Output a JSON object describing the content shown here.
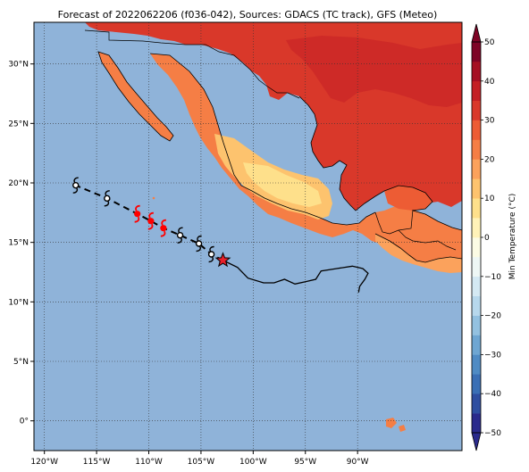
{
  "title": "Forecast of 2022062206 (f036-042), Sources: GDACS (TC track), GFS (Meteo)",
  "map": {
    "lon_range": [
      -121.0,
      -80.0
    ],
    "lat_range": [
      -2.5,
      33.5
    ],
    "lon_ticks": [
      {
        "lon": -120,
        "label": "120°W"
      },
      {
        "lon": -115,
        "label": "115°W"
      },
      {
        "lon": -110,
        "label": "110°W"
      },
      {
        "lon": -105,
        "label": "105°W"
      },
      {
        "lon": -100,
        "label": "100°W"
      },
      {
        "lon": -95,
        "label": "95°W"
      },
      {
        "lon": -90,
        "label": "90°W"
      }
    ],
    "lat_ticks": [
      {
        "lat": 0,
        "label": "0°"
      },
      {
        "lat": 5,
        "label": "5°N"
      },
      {
        "lat": 10,
        "label": "10°N"
      },
      {
        "lat": 15,
        "label": "15°N"
      },
      {
        "lat": 20,
        "label": "20°N"
      },
      {
        "lat": 25,
        "label": "25°N"
      },
      {
        "lat": 30,
        "label": "30°N"
      }
    ],
    "ocean_color": "#8fb3d9",
    "grid": "dotted"
  },
  "colorbar": {
    "label": "Min Temperature (°C)",
    "levels": [
      -50,
      -45,
      -40,
      -35,
      -30,
      -25,
      -20,
      -15,
      -10,
      -5,
      0,
      5,
      10,
      15,
      20,
      25,
      30,
      35,
      40,
      45,
      50
    ],
    "colors": [
      "#2a2a8c",
      "#2e4ea0",
      "#3a6fb5",
      "#4f8bc4",
      "#6ea6d2",
      "#93c1e0",
      "#b7d8ec",
      "#d4e9f3",
      "#eef7f5",
      "#fbfbe4",
      "#fff2b8",
      "#fee08b",
      "#fdc36e",
      "#fba25c",
      "#f57e45",
      "#ed5c34",
      "#d9382a",
      "#c41f24",
      "#a50f23",
      "#7e0426"
    ],
    "tick_values": [
      -50,
      -40,
      -30,
      -20,
      -10,
      0,
      10,
      20,
      30,
      40,
      50
    ],
    "tick_labels": [
      "−50",
      "−40",
      "−30",
      "−20",
      "−10",
      "0",
      "10",
      "20",
      "30",
      "40",
      "50"
    ],
    "extend": "both"
  },
  "track": {
    "forecast_start": {
      "lon": -102.9,
      "lat": 13.5,
      "marker": "star"
    },
    "past_track": [
      [
        -102.9,
        13.5
      ],
      [
        -101.5,
        12.9
      ],
      [
        -100.5,
        12.0
      ],
      [
        -99.0,
        11.6
      ],
      [
        -98.0,
        11.6
      ],
      [
        -97.0,
        11.9
      ],
      [
        -96.0,
        11.5
      ],
      [
        -95.0,
        11.7
      ],
      [
        -94.0,
        11.9
      ],
      [
        -93.5,
        12.6
      ],
      [
        -92.0,
        12.8
      ],
      [
        -90.5,
        13.0
      ],
      [
        -89.5,
        12.8
      ],
      [
        -89.0,
        12.4
      ],
      [
        -89.3,
        11.9
      ],
      [
        -89.8,
        11.3
      ],
      [
        -89.9,
        10.8
      ]
    ],
    "forecast_track": [
      [
        -102.9,
        13.5
      ],
      [
        -104.0,
        14.0
      ],
      [
        -105.2,
        14.9
      ],
      [
        -107.0,
        15.6
      ],
      [
        -108.6,
        16.2
      ],
      [
        -109.8,
        16.8
      ],
      [
        -111.1,
        17.4
      ],
      [
        -114.0,
        18.7
      ],
      [
        -117.0,
        19.8
      ]
    ],
    "symbols": [
      {
        "lon": -104.0,
        "lat": 14.0,
        "kind": "storm",
        "color": "#000000"
      },
      {
        "lon": -105.2,
        "lat": 14.9,
        "kind": "storm",
        "color": "#000000"
      },
      {
        "lon": -107.0,
        "lat": 15.6,
        "kind": "storm",
        "color": "#000000"
      },
      {
        "lon": -108.6,
        "lat": 16.2,
        "kind": "hurricane",
        "color": "#ff0000"
      },
      {
        "lon": -109.8,
        "lat": 16.8,
        "kind": "hurricane",
        "color": "#ff0000"
      },
      {
        "lon": -111.1,
        "lat": 17.4,
        "kind": "hurricane",
        "color": "#ff0000"
      },
      {
        "lon": -114.0,
        "lat": 18.7,
        "kind": "storm",
        "color": "#000000"
      },
      {
        "lon": -117.0,
        "lat": 19.8,
        "kind": "storm",
        "color": "#000000"
      }
    ]
  }
}
